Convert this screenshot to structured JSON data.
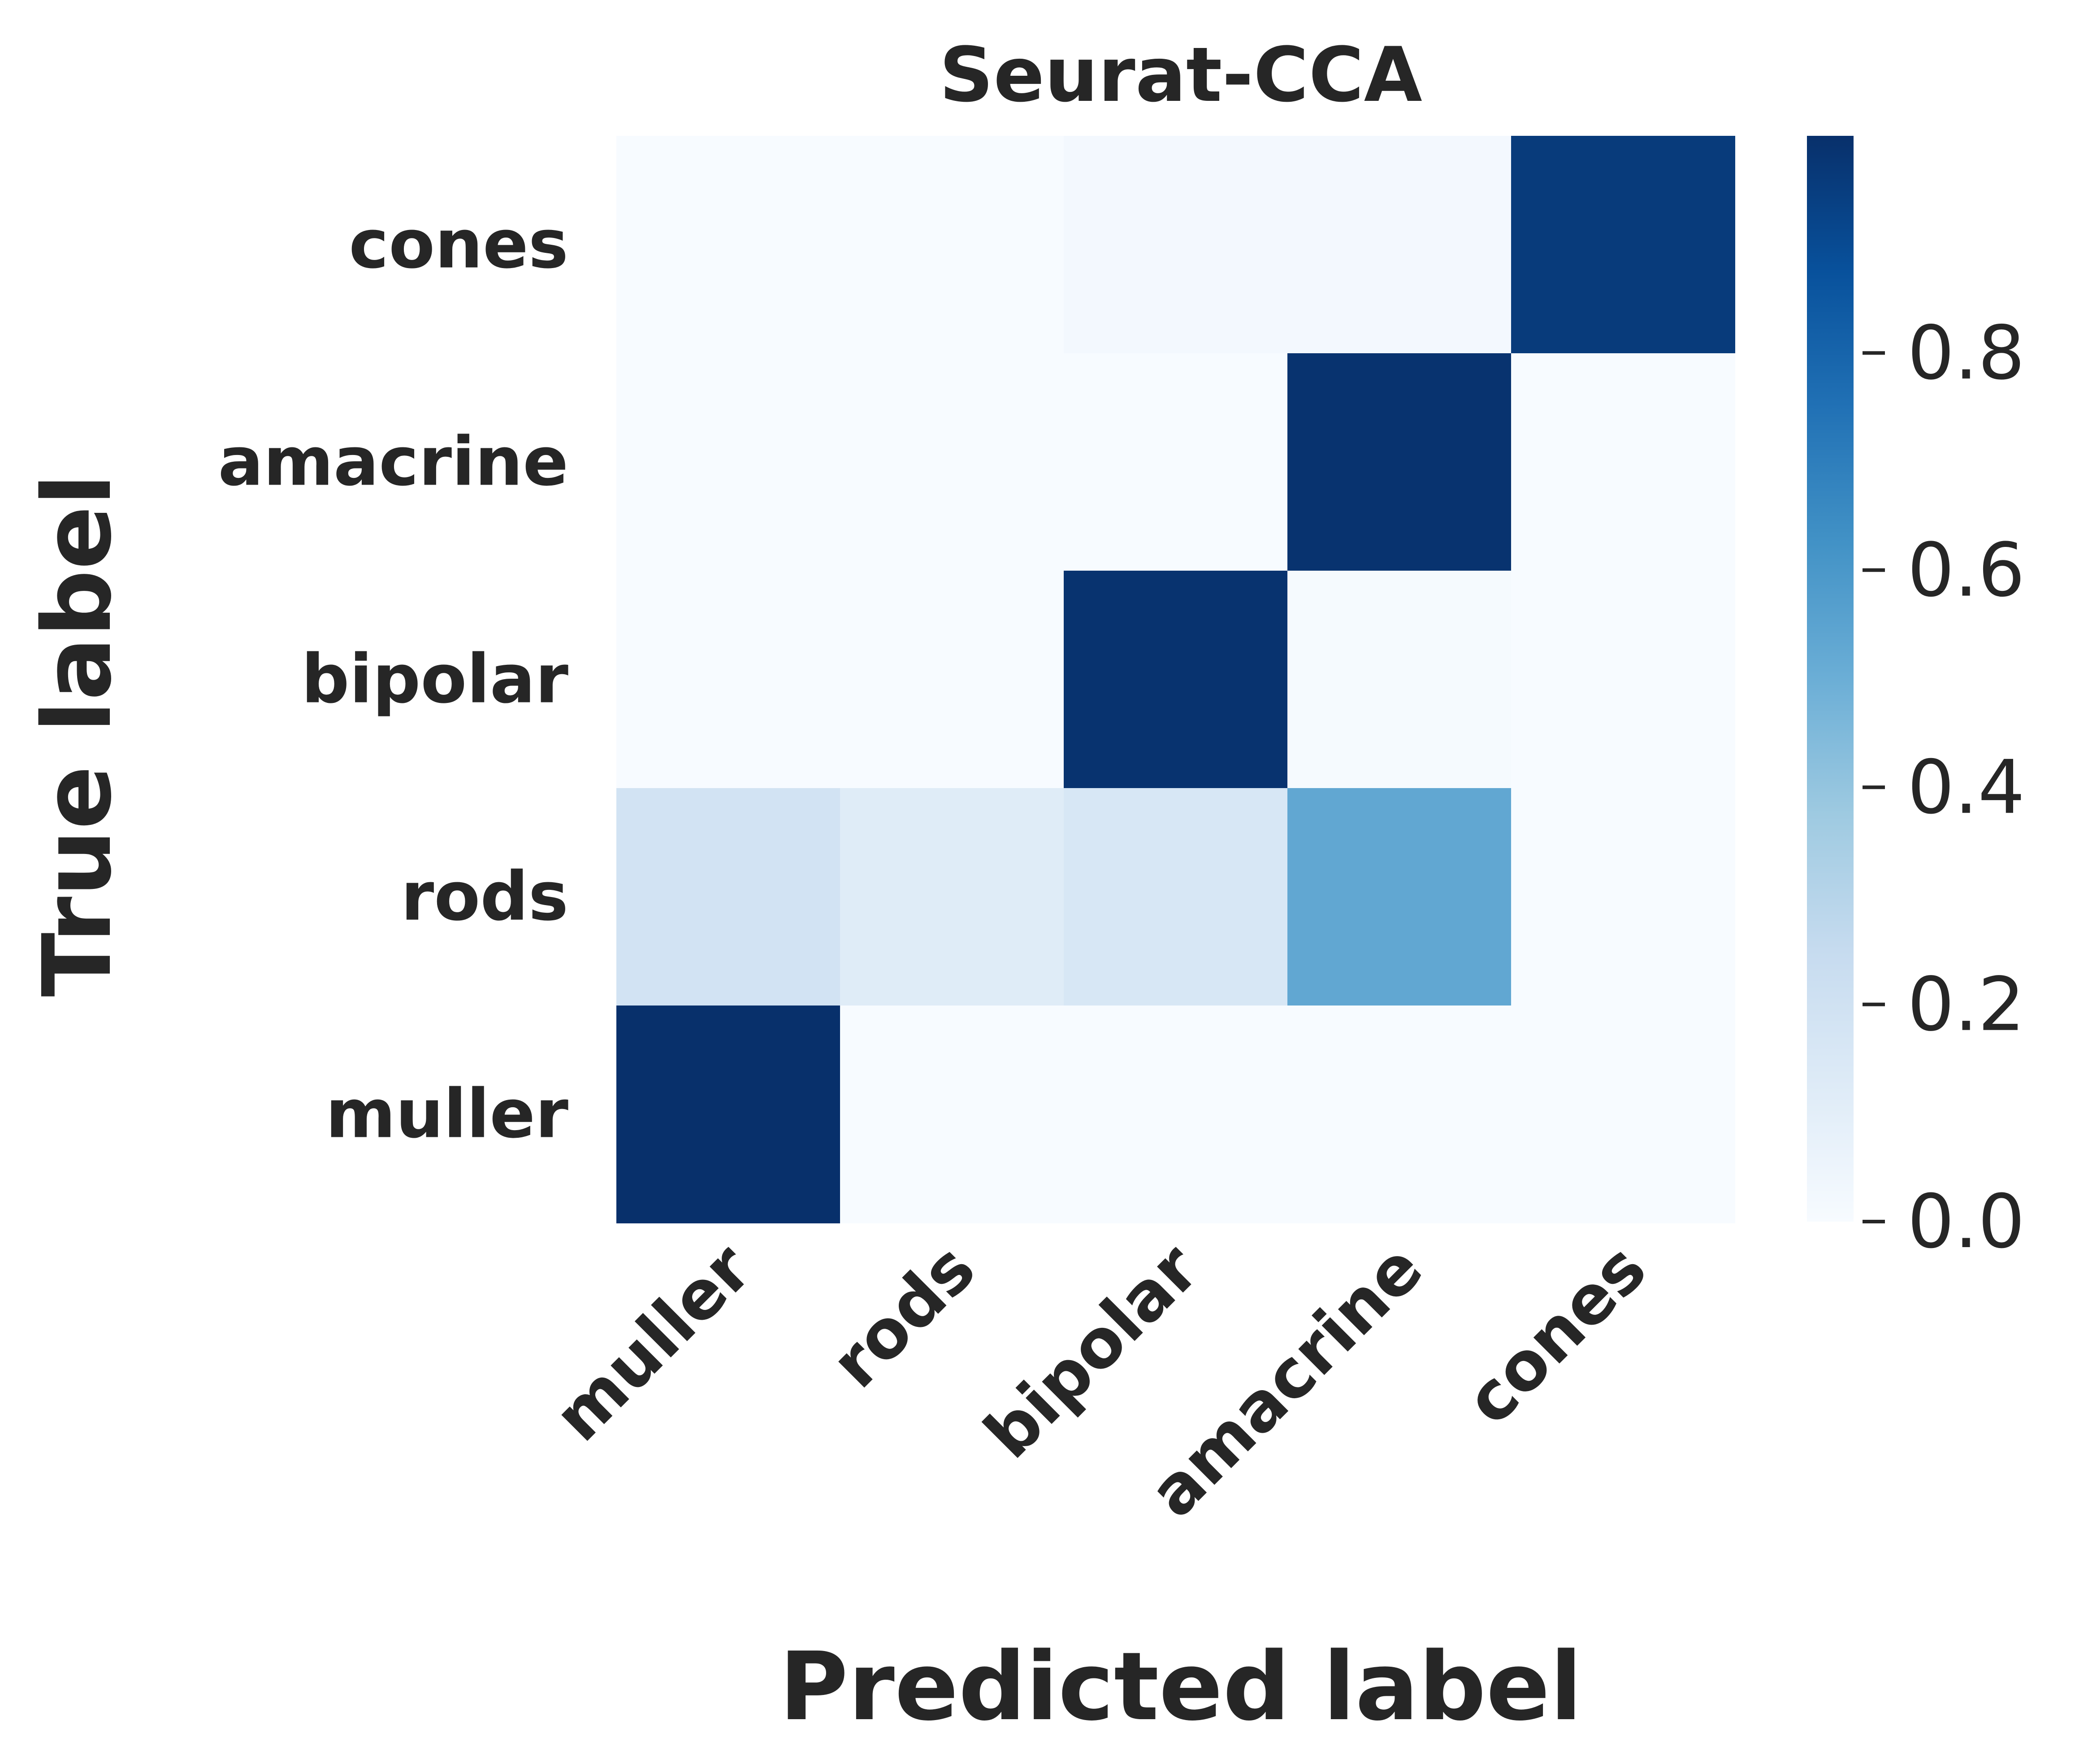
{
  "chart_data": {
    "type": "heatmap",
    "title": "Seurat-CCA",
    "xlabel": "Predicted label",
    "ylabel": "True label",
    "x_categories": [
      "muller",
      "rods",
      "bipolar",
      "amacrine",
      "cones"
    ],
    "y_categories": [
      "cones",
      "amacrine",
      "bipolar",
      "rods",
      "muller"
    ],
    "values": [
      [
        0.0,
        0.0,
        0.02,
        0.02,
        0.96
      ],
      [
        0.0,
        0.0,
        0.0,
        0.99,
        0.0
      ],
      [
        0.0,
        0.0,
        0.99,
        0.01,
        0.0
      ],
      [
        0.19,
        0.12,
        0.16,
        0.53,
        0.0
      ],
      [
        1.0,
        0.0,
        0.0,
        0.0,
        0.0
      ]
    ],
    "colormap": "Blues",
    "colorbar": {
      "range": [
        0.0,
        1.0
      ],
      "ticks": [
        0.0,
        0.2,
        0.4,
        0.6,
        0.8
      ],
      "tick_labels": [
        "0.0",
        "0.2",
        "0.4",
        "0.6",
        "0.8"
      ]
    },
    "grid": false,
    "legend": "none"
  }
}
